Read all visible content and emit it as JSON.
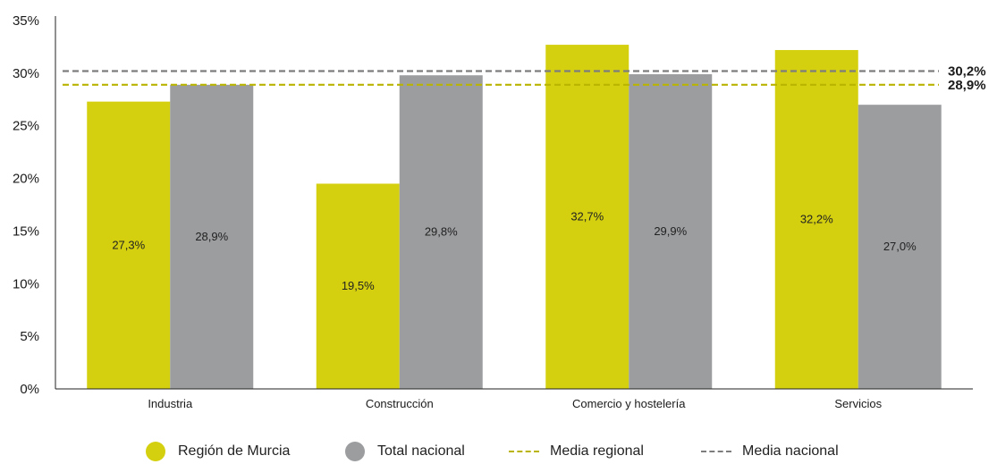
{
  "chart_data": {
    "type": "bar",
    "title": "",
    "xlabel": "",
    "ylabel": "",
    "ylim": [
      0,
      35
    ],
    "yticks": [
      "0%",
      "5%",
      "10%",
      "15%",
      "20%",
      "25%",
      "30%",
      "35%"
    ],
    "categories": [
      "Industria",
      "Construcción",
      "Comercio y hostelería",
      "Servicios"
    ],
    "series": [
      {
        "name": "Región de Murcia",
        "color": "#d4d00f",
        "values": [
          27.3,
          19.5,
          32.7,
          32.2
        ],
        "labels": [
          "27,3%",
          "19,5%",
          "32,7%",
          "32,2%"
        ]
      },
      {
        "name": "Total nacional",
        "color": "#9c9d9f",
        "values": [
          28.9,
          29.8,
          29.9,
          27.0
        ],
        "labels": [
          "28,9%",
          "29,8%",
          "29,9%",
          "27,0%"
        ]
      }
    ],
    "reference_lines": [
      {
        "name": "Media regional",
        "value": 28.9,
        "label": "28,9%",
        "color": "#b9b400"
      },
      {
        "name": "Media nacional",
        "value": 30.2,
        "label": "30,2%",
        "color": "#7d7d7d"
      }
    ],
    "grid": false,
    "legend": "bottom"
  }
}
